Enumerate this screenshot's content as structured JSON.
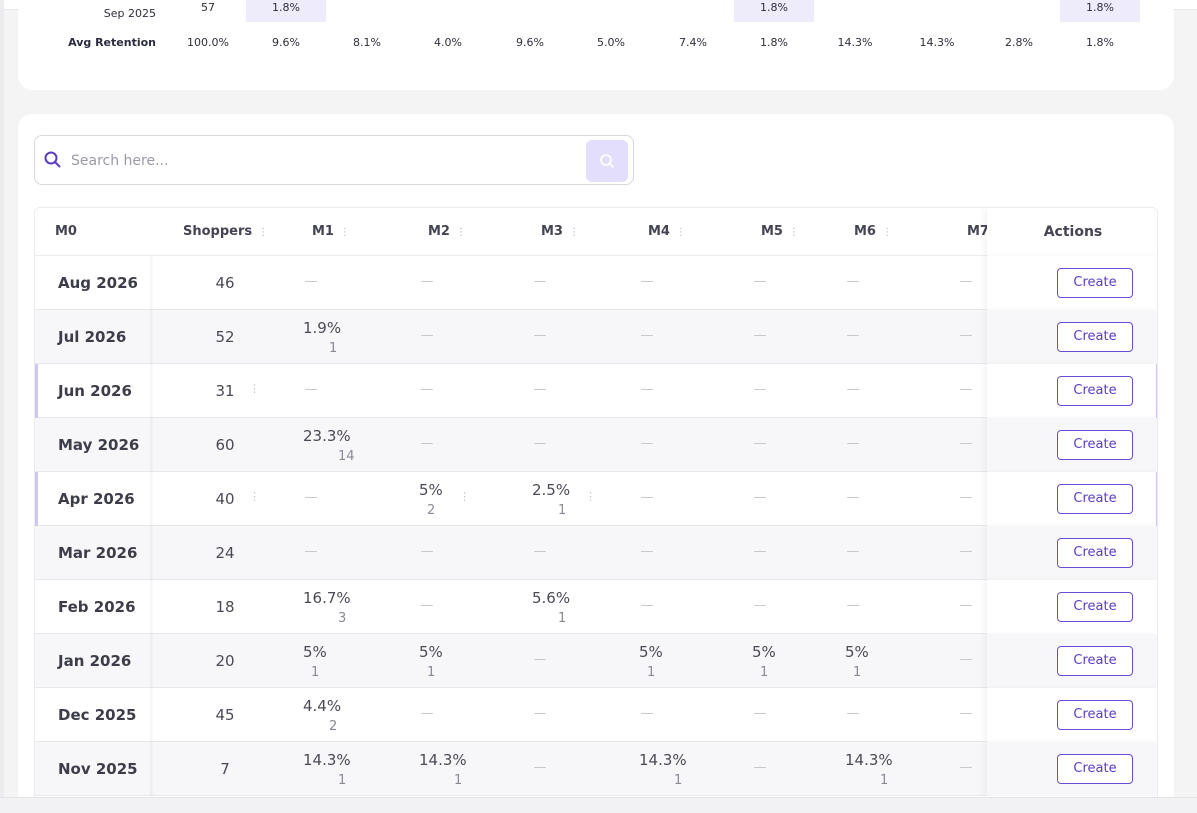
{
  "summary": {
    "rows": [
      {
        "label": "Sep 2025",
        "cells": [
          "57",
          "1.8%",
          "",
          "",
          "",
          "",
          "",
          "1.8%",
          "",
          "",
          "",
          "1.8%"
        ],
        "highlight": [
          false,
          true,
          false,
          false,
          false,
          false,
          false,
          true,
          false,
          false,
          false,
          true
        ]
      },
      {
        "label": "Avg Retention",
        "cells": [
          "100.0%",
          "9.6%",
          "8.1%",
          "4.0%",
          "9.6%",
          "5.0%",
          "7.4%",
          "1.8%",
          "14.3%",
          "14.3%",
          "2.8%",
          "1.8%"
        ],
        "highlight": [
          false,
          false,
          false,
          false,
          false,
          false,
          false,
          false,
          false,
          false,
          false,
          false
        ]
      }
    ]
  },
  "search": {
    "placeholder": "Search here..."
  },
  "table": {
    "headers": {
      "m0": "M0",
      "shoppers": "Shoppers",
      "m1": "M1",
      "m2": "M2",
      "m3": "M3",
      "m4": "M4",
      "m5": "M5",
      "m6": "M6",
      "m7": "M7",
      "actions": "Actions"
    },
    "create_label": "Create",
    "dash": "—",
    "rows": [
      {
        "label": "Aug 2026",
        "shoppers": "46",
        "cells": [
          null,
          null,
          null,
          null,
          null,
          null,
          null
        ]
      },
      {
        "label": "Jul 2026",
        "shoppers": "52",
        "cells": [
          [
            "1.9%",
            "1"
          ],
          null,
          null,
          null,
          null,
          null,
          null
        ]
      },
      {
        "label": "Jun 2026",
        "shoppers": "31",
        "cells": [
          null,
          null,
          null,
          null,
          null,
          null,
          null
        ]
      },
      {
        "label": "May 2026",
        "shoppers": "60",
        "cells": [
          [
            "23.3%",
            "14"
          ],
          null,
          null,
          null,
          null,
          null,
          null
        ]
      },
      {
        "label": "Apr 2026",
        "shoppers": "40",
        "cells": [
          null,
          [
            "5%",
            "2"
          ],
          [
            "2.5%",
            "1"
          ],
          null,
          null,
          null,
          null
        ]
      },
      {
        "label": "Mar 2026",
        "shoppers": "24",
        "cells": [
          null,
          null,
          null,
          null,
          null,
          null,
          null
        ]
      },
      {
        "label": "Feb 2026",
        "shoppers": "18",
        "cells": [
          [
            "16.7%",
            "3"
          ],
          null,
          [
            "5.6%",
            "1"
          ],
          null,
          null,
          null,
          null
        ]
      },
      {
        "label": "Jan 2026",
        "shoppers": "20",
        "cells": [
          [
            "5%",
            "1"
          ],
          [
            "5%",
            "1"
          ],
          null,
          [
            "5%",
            "1"
          ],
          [
            "5%",
            "1"
          ],
          [
            "5%",
            "1"
          ],
          null
        ]
      },
      {
        "label": "Dec 2025",
        "shoppers": "45",
        "cells": [
          [
            "4.4%",
            "2"
          ],
          null,
          null,
          null,
          null,
          null,
          null
        ]
      },
      {
        "label": "Nov 2025",
        "shoppers": "7",
        "cells": [
          [
            "14.3%",
            "1"
          ],
          [
            "14.3%",
            "1"
          ],
          null,
          [
            "14.3%",
            "1"
          ],
          null,
          [
            "14.3%",
            "1"
          ],
          null
        ]
      }
    ]
  },
  "colors": {
    "accent": "#6a4bd6",
    "highlight": "#eeecfb",
    "selected_border": "#cfc6f2"
  }
}
